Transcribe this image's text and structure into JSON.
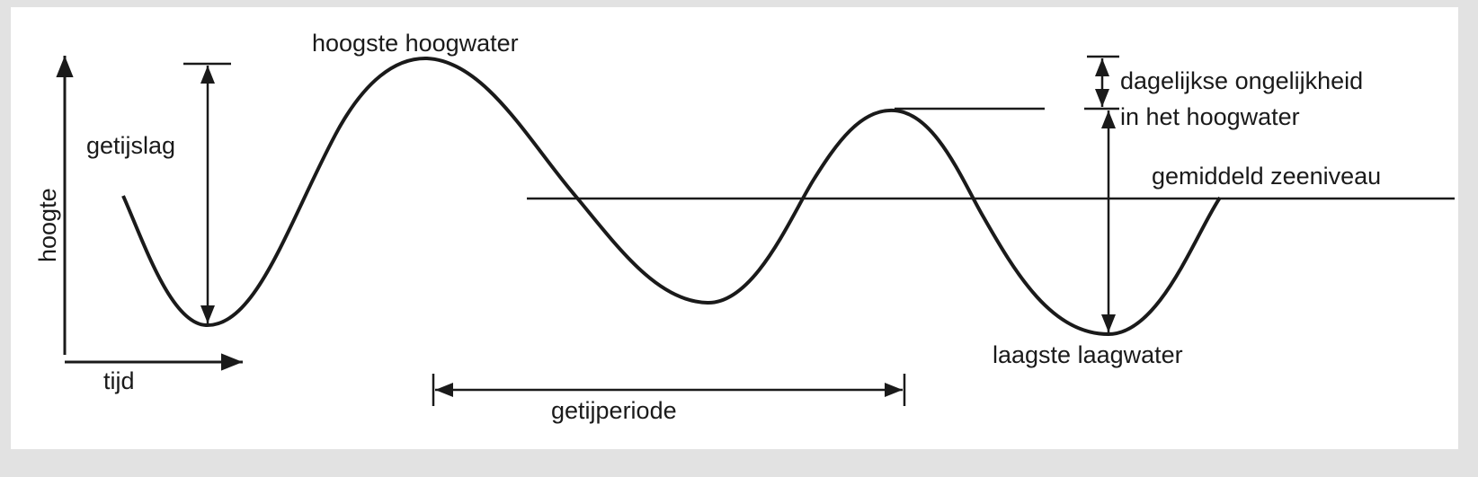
{
  "diagram": {
    "labels": {
      "y_axis": "hoogte",
      "x_axis": "tijd",
      "tidal_range": "getijslag",
      "highest_high_water": "hoogste hoogwater",
      "diurnal_inequality_line1": "dagelijkse ongelijkheid",
      "diurnal_inequality_line2": "in het hoogwater",
      "mean_sea_level": "gemiddeld zeeniveau",
      "lowest_low_water": "laagste laagwater",
      "tidal_period": "getijperiode"
    },
    "colors": {
      "ink": "#1a1a1a",
      "paper": "#ffffff",
      "frame": "#e2e2e2"
    }
  }
}
